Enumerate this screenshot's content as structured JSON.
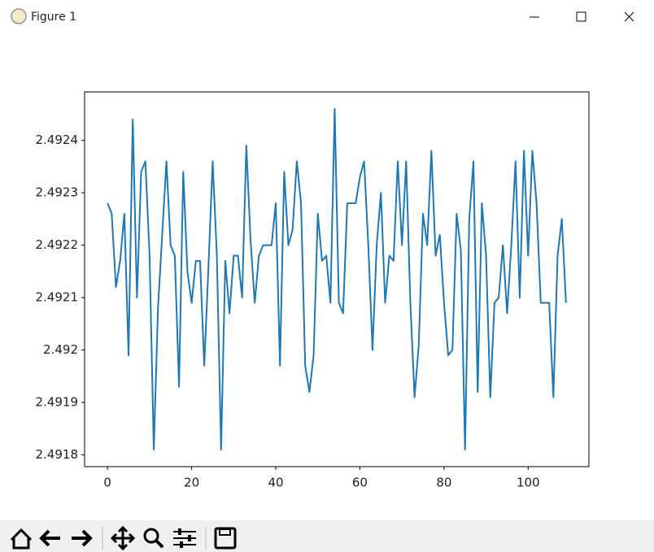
{
  "window": {
    "title": "Figure 1"
  },
  "chart_data": {
    "type": "line",
    "x": [
      0,
      1,
      2,
      3,
      4,
      5,
      6,
      7,
      8,
      9,
      10,
      11,
      12,
      13,
      14,
      15,
      16,
      17,
      18,
      19,
      20,
      21,
      22,
      23,
      24,
      25,
      26,
      27,
      28,
      29,
      30,
      31,
      32,
      33,
      34,
      35,
      36,
      37,
      38,
      39,
      40,
      41,
      42,
      43,
      44,
      45,
      46,
      47,
      48,
      49,
      50,
      51,
      52,
      53,
      54,
      55,
      56,
      57,
      58,
      59,
      60,
      61,
      62,
      63,
      64,
      65,
      66,
      67,
      68,
      69,
      70,
      71,
      72,
      73,
      74,
      75,
      76,
      77,
      78,
      79,
      80,
      81,
      82,
      83,
      84,
      85,
      86,
      87,
      88,
      89,
      90,
      91,
      92,
      93,
      94,
      95,
      96,
      97,
      98,
      99,
      100,
      101,
      102,
      103,
      104,
      105,
      106,
      107,
      108,
      109
    ],
    "series": [
      {
        "color": "#1f77b4",
        "values": [
          2.49228,
          2.49226,
          2.49212,
          2.49217,
          2.49226,
          2.49199,
          2.49244,
          2.4921,
          2.49234,
          2.49236,
          2.49218,
          2.49181,
          2.49208,
          2.49222,
          2.49236,
          2.4922,
          2.49218,
          2.49193,
          2.49234,
          2.49215,
          2.49209,
          2.49217,
          2.49217,
          2.49197,
          2.49216,
          2.49236,
          2.49218,
          2.49181,
          2.49217,
          2.49207,
          2.49218,
          2.49218,
          2.4921,
          2.49239,
          2.49221,
          2.49209,
          2.49218,
          2.4922,
          2.4922,
          2.4922,
          2.49228,
          2.49197,
          2.49234,
          2.4922,
          2.49223,
          2.49236,
          2.49228,
          2.49197,
          2.49192,
          2.49199,
          2.49226,
          2.49217,
          2.49218,
          2.49209,
          2.49246,
          2.49209,
          2.49207,
          2.49228,
          2.49228,
          2.49228,
          2.49233,
          2.49236,
          2.4922,
          2.492,
          2.4922,
          2.4923,
          2.49209,
          2.49218,
          2.49217,
          2.49236,
          2.4922,
          2.49236,
          2.49209,
          2.49191,
          2.49201,
          2.49226,
          2.4922,
          2.49238,
          2.49218,
          2.49222,
          2.49209,
          2.49199,
          2.492,
          2.49226,
          2.49219,
          2.49181,
          2.49225,
          2.49236,
          2.49192,
          2.49228,
          2.49218,
          2.49191,
          2.49209,
          2.4921,
          2.4922,
          2.49207,
          2.4922,
          2.49236,
          2.4921,
          2.49238,
          2.49218,
          2.49238,
          2.49228,
          2.49209,
          2.49209,
          2.49209,
          2.49191,
          2.49218,
          2.49225,
          2.49209
        ]
      }
    ],
    "xlim": [
      -5.45,
      114.45
    ],
    "xticks": [
      0,
      20,
      40,
      60,
      80,
      100
    ],
    "ylim": [
      2.4917775,
      2.4924925
    ],
    "yticks": [
      2.4918,
      2.4919,
      2.492,
      2.4921,
      2.4922,
      2.4923,
      2.4924
    ]
  }
}
